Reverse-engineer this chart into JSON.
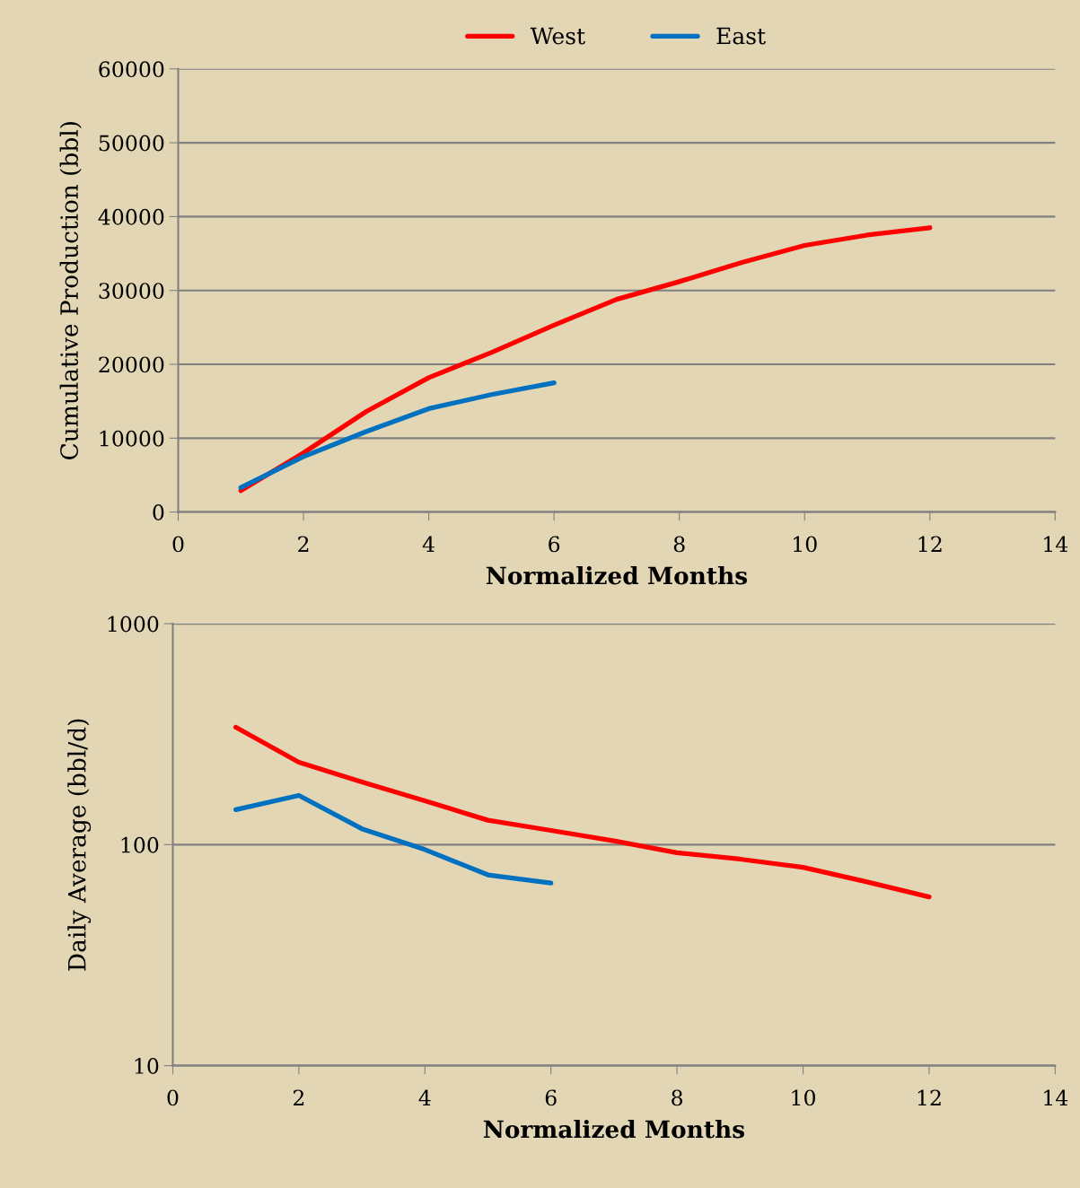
{
  "chart_data": [
    {
      "type": "line",
      "xlabel": "Normalized Months",
      "ylabel": "Cumulative Production (bbl)",
      "xlim": [
        0,
        14
      ],
      "xticks": [
        0,
        2,
        4,
        6,
        8,
        10,
        12,
        14
      ],
      "ylim": [
        0,
        60000
      ],
      "yticks": [
        0,
        10000,
        20000,
        30000,
        40000,
        50000,
        60000
      ],
      "grid": "y",
      "legend": "top",
      "marker": "none",
      "line_style": "solid",
      "series": [
        {
          "name": "West",
          "color": "#ff0000",
          "x": [
            1,
            2,
            3,
            4,
            5,
            6,
            7,
            8,
            9,
            10,
            11,
            12
          ],
          "values": [
            2900,
            8000,
            13600,
            18200,
            21600,
            25300,
            28800,
            31200,
            33800,
            36100,
            37500,
            38500
          ]
        },
        {
          "name": "East",
          "color": "#0070c0",
          "x": [
            1,
            2,
            3,
            4,
            5,
            6
          ],
          "values": [
            3300,
            7500,
            10900,
            14000,
            15900,
            17500
          ]
        }
      ]
    },
    {
      "type": "line",
      "xlabel": "Normalized Months",
      "ylabel": "Daily Average (bbl/d)",
      "xlim": [
        0,
        14
      ],
      "xticks": [
        0,
        2,
        4,
        6,
        8,
        10,
        12,
        14
      ],
      "ylim": [
        10,
        1000
      ],
      "yticks": [
        10,
        100,
        1000
      ],
      "log": "y",
      "grid": "y",
      "marker": "none",
      "line_style": "solid",
      "series": [
        {
          "color": "#ff0000",
          "x": [
            1,
            2,
            3,
            4,
            5,
            6,
            7,
            8,
            9,
            10,
            11,
            12
          ],
          "values": [
            340,
            236,
            192,
            158,
            129,
            116,
            104,
            92,
            86,
            79,
            68,
            58
          ]
        },
        {
          "color": "#0070c0",
          "x": [
            1,
            2,
            3,
            4,
            5,
            6
          ],
          "values": [
            144,
            167,
            118,
            95,
            73,
            67
          ]
        }
      ]
    }
  ]
}
